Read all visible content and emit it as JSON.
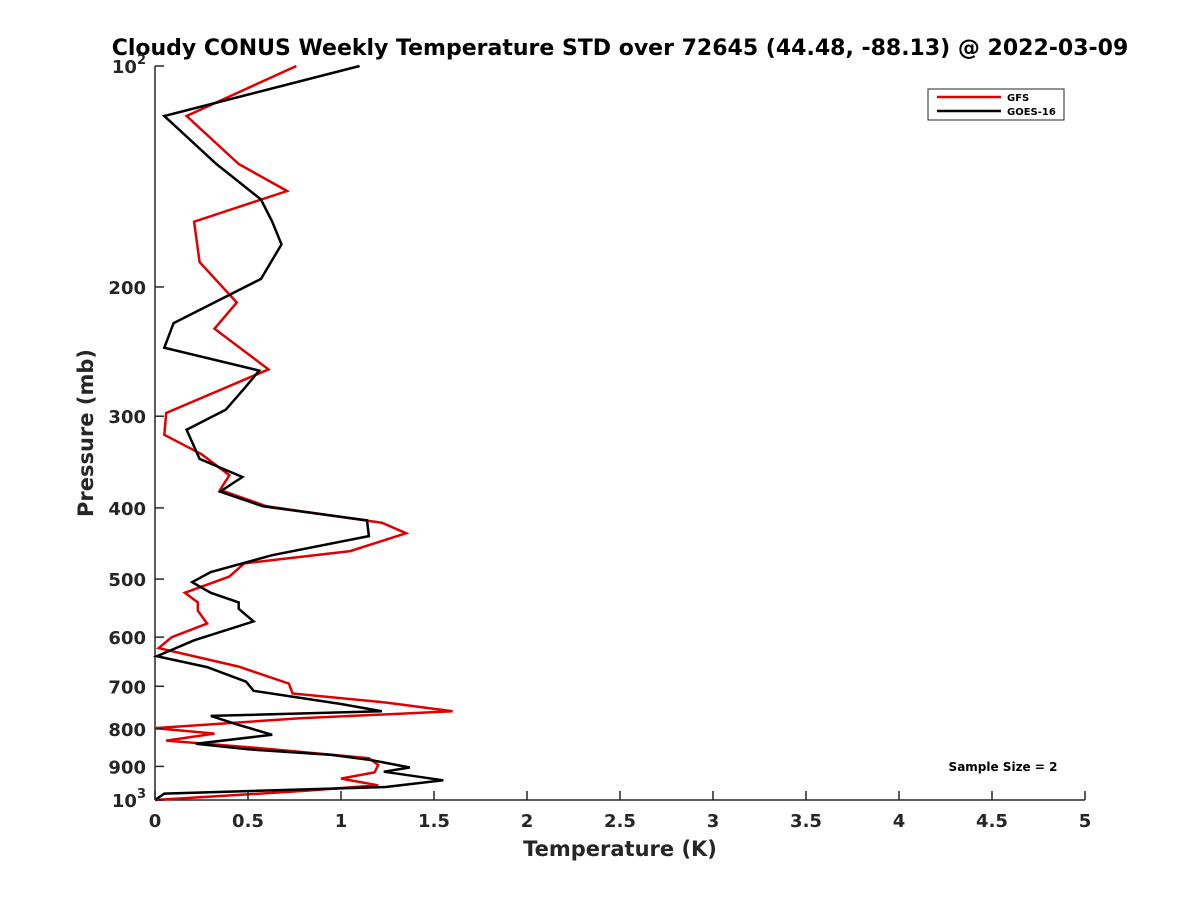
{
  "chart_data": {
    "type": "line",
    "title": "Cloudy CONUS Weekly Temperature STD over 72645 (44.48, -88.13) @ 2022-03-09",
    "xlabel": "Temperature (K)",
    "ylabel": "Pressure (mb)",
    "xlim": [
      0,
      5
    ],
    "ylim": [
      100,
      1000
    ],
    "yscale": "log",
    "y_reversed": true,
    "x_ticks": [
      "0",
      "0.5",
      "1",
      "1.5",
      "2",
      "2.5",
      "3",
      "3.5",
      "4",
      "4.5",
      "5"
    ],
    "y_ticks": [
      {
        "value": 100,
        "base": "10",
        "exp": "2"
      },
      {
        "value": 200,
        "label": "200"
      },
      {
        "value": 300,
        "label": "300"
      },
      {
        "value": 400,
        "label": "400"
      },
      {
        "value": 500,
        "label": "500"
      },
      {
        "value": 600,
        "label": "600"
      },
      {
        "value": 700,
        "label": "700"
      },
      {
        "value": 800,
        "label": "800"
      },
      {
        "value": 900,
        "label": "900"
      },
      {
        "value": 1000,
        "base": "10",
        "exp": "3"
      }
    ],
    "legend_position": "top-right",
    "annotation": "Sample Size = 2",
    "grid": false,
    "series": [
      {
        "name": "GFS",
        "color": "#e00000",
        "points": [
          [
            0.76,
            100
          ],
          [
            0.17,
            117
          ],
          [
            0.45,
            136
          ],
          [
            0.71,
            148
          ],
          [
            0.21,
            163
          ],
          [
            0.24,
            185
          ],
          [
            0.44,
            210
          ],
          [
            0.32,
            228
          ],
          [
            0.61,
            259
          ],
          [
            0.06,
            297
          ],
          [
            0.05,
            318
          ],
          [
            0.25,
            338
          ],
          [
            0.4,
            361
          ],
          [
            0.35,
            378
          ],
          [
            0.6,
            398
          ],
          [
            1.22,
            419
          ],
          [
            1.35,
            433
          ],
          [
            1.05,
            458
          ],
          [
            0.48,
            476
          ],
          [
            0.4,
            496
          ],
          [
            0.16,
            522
          ],
          [
            0.23,
            538
          ],
          [
            0.23,
            552
          ],
          [
            0.28,
            575
          ],
          [
            0.09,
            600
          ],
          [
            0.02,
            621
          ],
          [
            0.45,
            658
          ],
          [
            0.72,
            694
          ],
          [
            0.74,
            716
          ],
          [
            1.25,
            737
          ],
          [
            1.6,
            757
          ],
          [
            0.78,
            774
          ],
          [
            0.0,
            798
          ],
          [
            0.32,
            812
          ],
          [
            0.06,
            830
          ],
          [
            0.57,
            850
          ],
          [
            1.15,
            877
          ],
          [
            1.2,
            896
          ],
          [
            1.18,
            917
          ],
          [
            1.0,
            935
          ],
          [
            1.2,
            955
          ],
          [
            0.8,
            972
          ],
          [
            0.0,
            1000
          ]
        ]
      },
      {
        "name": "GOES-16",
        "color": "#000000",
        "points": [
          [
            1.1,
            100
          ],
          [
            0.05,
            117
          ],
          [
            0.33,
            136
          ],
          [
            0.57,
            152
          ],
          [
            0.63,
            163
          ],
          [
            0.68,
            175
          ],
          [
            0.57,
            195
          ],
          [
            0.1,
            224
          ],
          [
            0.05,
            242
          ],
          [
            0.56,
            260
          ],
          [
            0.48,
            275
          ],
          [
            0.38,
            294
          ],
          [
            0.17,
            313
          ],
          [
            0.24,
            343
          ],
          [
            0.47,
            363
          ],
          [
            0.35,
            380
          ],
          [
            0.58,
            398
          ],
          [
            1.14,
            416
          ],
          [
            1.15,
            437
          ],
          [
            0.63,
            464
          ],
          [
            0.3,
            489
          ],
          [
            0.2,
            505
          ],
          [
            0.3,
            522
          ],
          [
            0.45,
            538
          ],
          [
            0.45,
            549
          ],
          [
            0.53,
            571
          ],
          [
            0.21,
            606
          ],
          [
            0.01,
            637
          ],
          [
            0.28,
            659
          ],
          [
            0.49,
            690
          ],
          [
            0.53,
            710
          ],
          [
            1.0,
            740
          ],
          [
            1.22,
            757
          ],
          [
            0.3,
            768
          ],
          [
            0.45,
            790
          ],
          [
            0.63,
            815
          ],
          [
            0.22,
            838
          ],
          [
            0.5,
            853
          ],
          [
            0.95,
            868
          ],
          [
            1.17,
            883
          ],
          [
            1.37,
            903
          ],
          [
            1.23,
            915
          ],
          [
            1.55,
            940
          ],
          [
            1.24,
            960
          ],
          [
            0.05,
            980
          ],
          [
            0.0,
            1000
          ]
        ]
      }
    ]
  }
}
